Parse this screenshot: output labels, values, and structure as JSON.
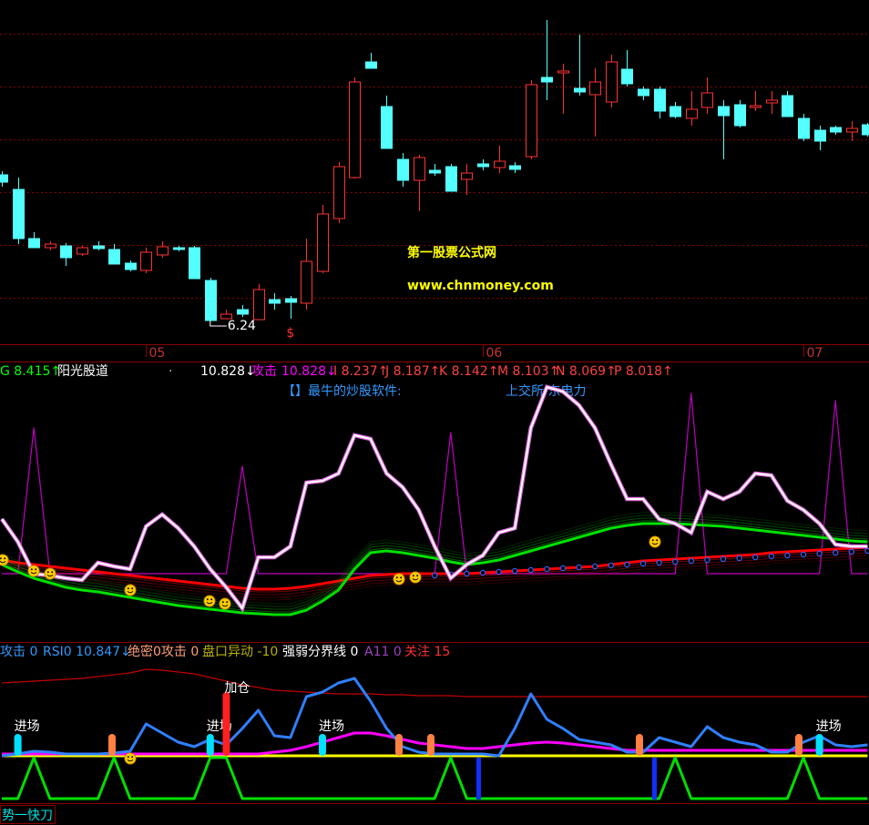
{
  "chart_data": [
    {
      "type": "candlestick",
      "x": [
        null,
        null,
        null,
        null,
        null,
        null,
        null,
        null,
        null,
        "05",
        null,
        null,
        null,
        null,
        null,
        null,
        null,
        null,
        null,
        null,
        null,
        null,
        null,
        null,
        null,
        null,
        null,
        null,
        null,
        null,
        "06",
        null,
        null,
        null,
        null,
        null,
        null,
        null,
        null,
        null,
        null,
        null,
        null,
        null,
        null,
        null,
        null,
        null,
        null,
        null,
        "07",
        null,
        null,
        null,
        null
      ],
      "open": [
        7.84,
        7.68,
        7.14,
        7.04,
        7.06,
        6.97,
        7.06,
        7.02,
        6.87,
        6.79,
        6.96,
        7.04,
        7.04,
        6.68,
        6.26,
        6.36,
        6.25,
        6.47,
        6.48,
        6.43,
        6.78,
        7.36,
        7.81,
        9.08,
        8.59,
        8.01,
        7.78,
        7.89,
        7.93,
        7.79,
        7.96,
        7.92,
        7.94,
        8.04,
        8.91,
        8.96,
        8.79,
        8.72,
        8.64,
        9.0,
        8.78,
        8.78,
        8.59,
        8.46,
        8.58,
        8.59,
        8.61,
        8.58,
        8.63,
        8.71,
        8.46,
        8.33,
        8.36,
        8.31,
        8.39
      ],
      "high": [
        7.88,
        7.81,
        7.21,
        7.11,
        7.09,
        7.06,
        7.11,
        7.08,
        6.9,
        7.04,
        7.11,
        7.06,
        7.06,
        6.71,
        6.36,
        6.41,
        6.64,
        6.54,
        6.51,
        7.14,
        7.51,
        7.98,
        8.91,
        9.18,
        8.71,
        8.08,
        8.06,
        7.96,
        7.96,
        7.96,
        8.01,
        8.16,
        7.98,
        8.88,
        9.54,
        9.06,
        9.38,
        9.01,
        9.16,
        9.21,
        8.81,
        8.81,
        8.64,
        8.76,
        8.91,
        8.66,
        8.66,
        8.76,
        8.76,
        8.76,
        8.51,
        8.38,
        8.38,
        8.43,
        8.41
      ],
      "low": [
        7.71,
        7.08,
        7.04,
        7.01,
        6.84,
        6.95,
        7.01,
        6.86,
        6.78,
        6.76,
        6.93,
        7.0,
        6.7,
        6.24,
        6.26,
        6.28,
        6.25,
        6.36,
        6.26,
        6.36,
        6.76,
        7.31,
        7.8,
        9.01,
        8.13,
        7.71,
        7.44,
        7.83,
        7.66,
        7.62,
        7.89,
        7.86,
        7.86,
        8.01,
        8.66,
        8.51,
        8.71,
        8.26,
        8.58,
        8.81,
        8.66,
        8.46,
        8.46,
        8.38,
        8.51,
        8.01,
        8.36,
        8.54,
        8.51,
        8.48,
        8.21,
        8.11,
        8.28,
        8.21,
        8.26
      ],
      "close": [
        7.76,
        7.14,
        7.04,
        7.08,
        6.93,
        7.04,
        7.03,
        6.86,
        6.8,
        6.99,
        7.05,
        7.02,
        6.7,
        6.24,
        6.31,
        6.31,
        6.58,
        6.43,
        6.44,
        6.89,
        7.41,
        7.93,
        8.86,
        9.01,
        8.13,
        7.78,
        8.03,
        7.86,
        7.66,
        7.86,
        7.93,
        7.99,
        7.9,
        8.83,
        8.86,
        8.98,
        8.75,
        8.86,
        9.08,
        8.84,
        8.71,
        8.54,
        8.48,
        8.56,
        8.74,
        8.49,
        8.38,
        8.6,
        8.66,
        8.48,
        8.24,
        8.21,
        8.31,
        8.35,
        8.28
      ],
      "up_color": "#ff3232",
      "down_color": "#54ffff",
      "ylim": [
        5.98,
        9.76
      ],
      "yticks": [
        6.49,
        7.07,
        7.65,
        8.23,
        8.81,
        9.39
      ],
      "grid": true,
      "low_label": "6.24",
      "signals": [
        {
          "text": "$",
          "at": 18,
          "color": "#ff3232"
        }
      ],
      "watermark": [
        "第一股票公式网",
        "www.chnmoney.com"
      ]
    },
    {
      "type": "line",
      "header": [
        {
          "text": "G 8.415↑",
          "color": "#00ff00"
        },
        {
          "text": "阳光股道",
          "color": "#ffffff"
        },
        {
          "text": "·",
          "color": "#c0c0c0"
        },
        {
          "text": "10.828↓",
          "color": "#ffffff"
        },
        {
          "text": "攻击",
          "color": "#ff00ff"
        },
        {
          "text": "10.828↓",
          "color": "#ff00ff"
        },
        {
          "text": "I 8.237↑",
          "color": "#ff4040"
        },
        {
          "text": "J 8.187↑",
          "color": "#ff4040"
        },
        {
          "text": "K 8.142↑",
          "color": "#ff4040"
        },
        {
          "text": "M 8.103↑",
          "color": "#ff4040"
        },
        {
          "text": "N 8.069↑",
          "color": "#ff4040"
        },
        {
          "text": "P 8.018↑",
          "color": "#ff4040"
        }
      ],
      "notes": [
        {
          "text": "【】最牛的炒股软件:",
          "color": "#3399ff"
        },
        {
          "text": "上交所 东电力",
          "color": "#3399ff"
        }
      ],
      "ylim": [
        0,
        285
      ],
      "series": [
        {
          "color": "#c000c0",
          "style": "line",
          "values": [
            75,
            75,
            235,
            75,
            75,
            75,
            75,
            75,
            75,
            75,
            75,
            75,
            75,
            75,
            75,
            193,
            75,
            75,
            75,
            75,
            75,
            75,
            75,
            75,
            75,
            75,
            75,
            75,
            230,
            75,
            75,
            75,
            75,
            75,
            75,
            75,
            75,
            75,
            75,
            75,
            75,
            75,
            75,
            273,
            75,
            75,
            75,
            75,
            75,
            75,
            75,
            75,
            265,
            75,
            75
          ]
        },
        {
          "color": "#ff0000",
          "style": "band",
          "values": [
            90,
            87,
            85,
            83,
            81,
            79,
            77,
            75,
            73,
            71,
            69,
            67,
            65,
            63,
            61,
            59,
            58,
            58,
            59,
            61,
            64,
            67,
            70,
            73,
            74,
            75,
            75,
            75,
            75,
            75,
            76,
            77,
            78,
            79,
            80,
            81,
            82,
            83,
            85,
            87,
            89,
            90,
            91,
            92,
            93,
            94,
            95,
            96,
            98,
            99,
            100,
            101,
            102,
            103,
            104
          ]
        },
        {
          "color": "#00e000",
          "style": "band",
          "values": [
            85,
            77,
            70,
            65,
            60,
            57,
            55,
            52,
            49,
            46,
            43,
            40,
            38,
            36,
            34,
            32,
            31,
            30,
            30,
            35,
            45,
            57,
            80,
            98,
            100,
            98,
            95,
            92,
            88,
            85,
            87,
            90,
            95,
            100,
            105,
            110,
            115,
            120,
            125,
            128,
            130,
            130,
            130,
            129,
            128,
            127,
            125,
            123,
            121,
            119,
            117,
            115,
            113,
            111,
            110
          ]
        },
        {
          "color": "#3060ff",
          "style": "dots",
          "values": [
            null,
            null,
            null,
            null,
            null,
            null,
            null,
            null,
            null,
            null,
            null,
            null,
            null,
            null,
            null,
            null,
            null,
            null,
            null,
            null,
            null,
            null,
            null,
            null,
            null,
            null,
            null,
            73,
            74,
            75,
            76,
            77,
            78,
            79,
            80,
            81,
            82,
            83,
            84,
            85,
            86,
            87,
            88,
            89,
            90,
            91,
            92,
            93,
            94,
            95,
            96,
            97,
            98,
            99,
            100
          ]
        },
        {
          "color": "#ffffff",
          "style": "glow",
          "values": [
            135,
            110,
            75,
            73,
            70,
            68,
            87,
            83,
            80,
            127,
            140,
            125,
            105,
            80,
            60,
            37,
            93,
            93,
            105,
            175,
            177,
            185,
            227,
            223,
            185,
            170,
            145,
            105,
            70,
            85,
            95,
            120,
            125,
            235,
            280,
            275,
            260,
            235,
            195,
            157,
            157,
            135,
            130,
            120,
            165,
            157,
            165,
            185,
            183,
            155,
            145,
            130,
            107,
            105,
            105
          ]
        }
      ]
    },
    {
      "type": "line",
      "header": [
        {
          "text": "攻击 0",
          "color": "#3399ff"
        },
        {
          "text": "RSI0 10.847↓",
          "color": "#3399ff"
        },
        {
          "text": "绝密0攻击 0",
          "color": "#ffa07a"
        },
        {
          "text": "盘口异动 -10",
          "color": "#b8b000"
        },
        {
          "text": "强弱分界线 0",
          "color": "#ffffff"
        },
        {
          "text": "A11 0",
          "color": "#a040c0"
        },
        {
          "text": "关注 15",
          "color": "#ff3030"
        }
      ],
      "ylim": [
        0,
        175
      ],
      "series": [
        {
          "color": "#c00000",
          "style": "line",
          "values": [
            130,
            131,
            132,
            133,
            134,
            135,
            137,
            139,
            141,
            145,
            144,
            142,
            140,
            136,
            132,
            128,
            125,
            122,
            121,
            120,
            119,
            118,
            118,
            118,
            117,
            117,
            116,
            116,
            116,
            115,
            115,
            115,
            115,
            115,
            115,
            115,
            115,
            115,
            115,
            115,
            115,
            115,
            115,
            115,
            115,
            115,
            115,
            115,
            115,
            115,
            115,
            115,
            115,
            115,
            115
          ]
        },
        {
          "color": "#ffff00",
          "style": "thick",
          "values": [
            50,
            50,
            50,
            50,
            50,
            50,
            50,
            50,
            50,
            50,
            50,
            50,
            50,
            50,
            50,
            50,
            50,
            50,
            50,
            50,
            50,
            50,
            50,
            50,
            50,
            50,
            50,
            50,
            50,
            50,
            50,
            50,
            50,
            50,
            50,
            50,
            50,
            50,
            50,
            50,
            50,
            50,
            50,
            50,
            50,
            50,
            50,
            50,
            50,
            50,
            50,
            50,
            50,
            50,
            50
          ]
        },
        {
          "color": "#ff00ff",
          "style": "thick",
          "values": [
            52,
            52,
            52,
            52,
            52,
            52,
            52,
            52,
            52,
            52,
            52,
            52,
            52,
            52,
            52,
            52,
            52,
            54,
            56,
            60,
            65,
            70,
            75,
            75,
            72,
            68,
            64,
            62,
            60,
            58,
            58,
            60,
            62,
            64,
            65,
            64,
            62,
            60,
            58,
            56,
            56,
            56,
            56,
            56,
            56,
            56,
            56,
            56,
            56,
            56,
            56,
            56,
            56,
            56,
            56
          ]
        },
        {
          "color": "#3080ff",
          "style": "thick",
          "values": [
            50,
            52,
            55,
            54,
            52,
            52,
            52,
            53,
            55,
            85,
            75,
            65,
            60,
            68,
            62,
            80,
            100,
            72,
            70,
            115,
            120,
            130,
            135,
            110,
            80,
            60,
            54,
            52,
            52,
            52,
            52,
            50,
            80,
            118,
            90,
            80,
            68,
            65,
            62,
            54,
            54,
            70,
            65,
            60,
            82,
            70,
            65,
            62,
            54,
            54,
            65,
            72,
            62,
            60,
            62
          ]
        },
        {
          "color": "#00e000",
          "style": "thick",
          "values": [
            3,
            3,
            48,
            3,
            3,
            3,
            3,
            48,
            3,
            3,
            3,
            3,
            3,
            48,
            48,
            3,
            3,
            3,
            3,
            3,
            3,
            3,
            3,
            3,
            3,
            3,
            3,
            3,
            48,
            3,
            3,
            3,
            3,
            3,
            3,
            3,
            3,
            3,
            3,
            3,
            3,
            3,
            48,
            3,
            3,
            3,
            3,
            3,
            3,
            3,
            48,
            3,
            3,
            3,
            3
          ]
        }
      ],
      "signals": [
        {
          "text": "进场",
          "at": 1,
          "color": "#00e0ff"
        },
        {
          "text": "进场",
          "at": 13,
          "color": "#00e0ff"
        },
        {
          "text": "加仓",
          "at": 14,
          "color": "#ff2020"
        },
        {
          "text": "进场",
          "at": 20,
          "color": "#00e0ff"
        },
        {
          "text": "进场",
          "at": 51,
          "color": "#00e0ff"
        }
      ]
    }
  ],
  "tab": "势一快刀"
}
